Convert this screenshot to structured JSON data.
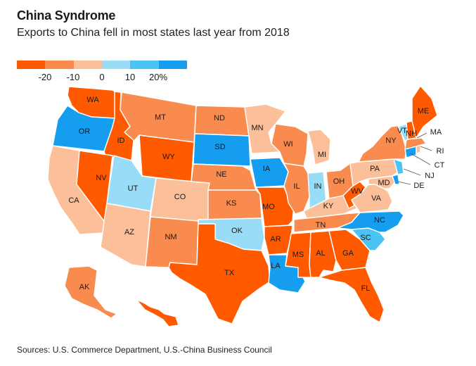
{
  "title": "China Syndrome",
  "subtitle": "Exports to China fell in most states last year from 2018",
  "legend": {
    "colors": [
      "#ff5a00",
      "#fa8b4f",
      "#fbbf99",
      "#99dcf7",
      "#4cc3f5",
      "#159df0"
    ],
    "ticks": [
      "-20",
      "-10",
      "0",
      "10",
      "20%"
    ]
  },
  "source": "Sources: U.S. Commerce Department, U.S.-China Business Council",
  "colors": {
    "dark_orange": "#ff5a00",
    "mid_orange": "#fa8b4f",
    "light_orange": "#fbbf99",
    "light_blue": "#99dcf7",
    "mid_blue": "#4cc3f5",
    "dark_blue": "#159df0"
  },
  "states": [
    {
      "abbr": "WA",
      "bin": "dark_orange"
    },
    {
      "abbr": "OR",
      "bin": "dark_blue"
    },
    {
      "abbr": "CA",
      "bin": "light_orange"
    },
    {
      "abbr": "ID",
      "bin": "dark_orange"
    },
    {
      "abbr": "NV",
      "bin": "dark_orange"
    },
    {
      "abbr": "MT",
      "bin": "mid_orange"
    },
    {
      "abbr": "WY",
      "bin": "dark_orange"
    },
    {
      "abbr": "UT",
      "bin": "light_blue"
    },
    {
      "abbr": "AZ",
      "bin": "light_orange"
    },
    {
      "abbr": "CO",
      "bin": "light_orange"
    },
    {
      "abbr": "NM",
      "bin": "mid_orange"
    },
    {
      "abbr": "ND",
      "bin": "mid_orange"
    },
    {
      "abbr": "SD",
      "bin": "dark_blue"
    },
    {
      "abbr": "NE",
      "bin": "mid_orange"
    },
    {
      "abbr": "KS",
      "bin": "mid_orange"
    },
    {
      "abbr": "OK",
      "bin": "light_blue"
    },
    {
      "abbr": "TX",
      "bin": "dark_orange"
    },
    {
      "abbr": "MN",
      "bin": "light_orange"
    },
    {
      "abbr": "IA",
      "bin": "dark_blue"
    },
    {
      "abbr": "MO",
      "bin": "dark_orange"
    },
    {
      "abbr": "AR",
      "bin": "dark_orange"
    },
    {
      "abbr": "LA",
      "bin": "dark_blue"
    },
    {
      "abbr": "WI",
      "bin": "mid_orange"
    },
    {
      "abbr": "IL",
      "bin": "mid_orange"
    },
    {
      "abbr": "MI",
      "bin": "light_orange"
    },
    {
      "abbr": "IN",
      "bin": "light_blue"
    },
    {
      "abbr": "OH",
      "bin": "mid_orange"
    },
    {
      "abbr": "KY",
      "bin": "light_orange"
    },
    {
      "abbr": "TN",
      "bin": "mid_orange"
    },
    {
      "abbr": "MS",
      "bin": "dark_orange"
    },
    {
      "abbr": "AL",
      "bin": "dark_orange"
    },
    {
      "abbr": "GA",
      "bin": "dark_orange"
    },
    {
      "abbr": "FL",
      "bin": "dark_orange"
    },
    {
      "abbr": "SC",
      "bin": "mid_blue"
    },
    {
      "abbr": "NC",
      "bin": "dark_blue"
    },
    {
      "abbr": "VA",
      "bin": "light_orange"
    },
    {
      "abbr": "WV",
      "bin": "dark_orange"
    },
    {
      "abbr": "MD",
      "bin": "light_orange"
    },
    {
      "abbr": "DE",
      "bin": "dark_blue"
    },
    {
      "abbr": "PA",
      "bin": "light_orange"
    },
    {
      "abbr": "NJ",
      "bin": "mid_blue"
    },
    {
      "abbr": "NY",
      "bin": "mid_orange"
    },
    {
      "abbr": "CT",
      "bin": "dark_blue"
    },
    {
      "abbr": "RI",
      "bin": "light_orange"
    },
    {
      "abbr": "MA",
      "bin": "mid_orange"
    },
    {
      "abbr": "VT",
      "bin": "light_blue"
    },
    {
      "abbr": "NH",
      "bin": "dark_orange"
    },
    {
      "abbr": "ME",
      "bin": "dark_orange"
    },
    {
      "abbr": "AK",
      "bin": "mid_orange"
    },
    {
      "abbr": "HI",
      "bin": "dark_orange"
    }
  ]
}
